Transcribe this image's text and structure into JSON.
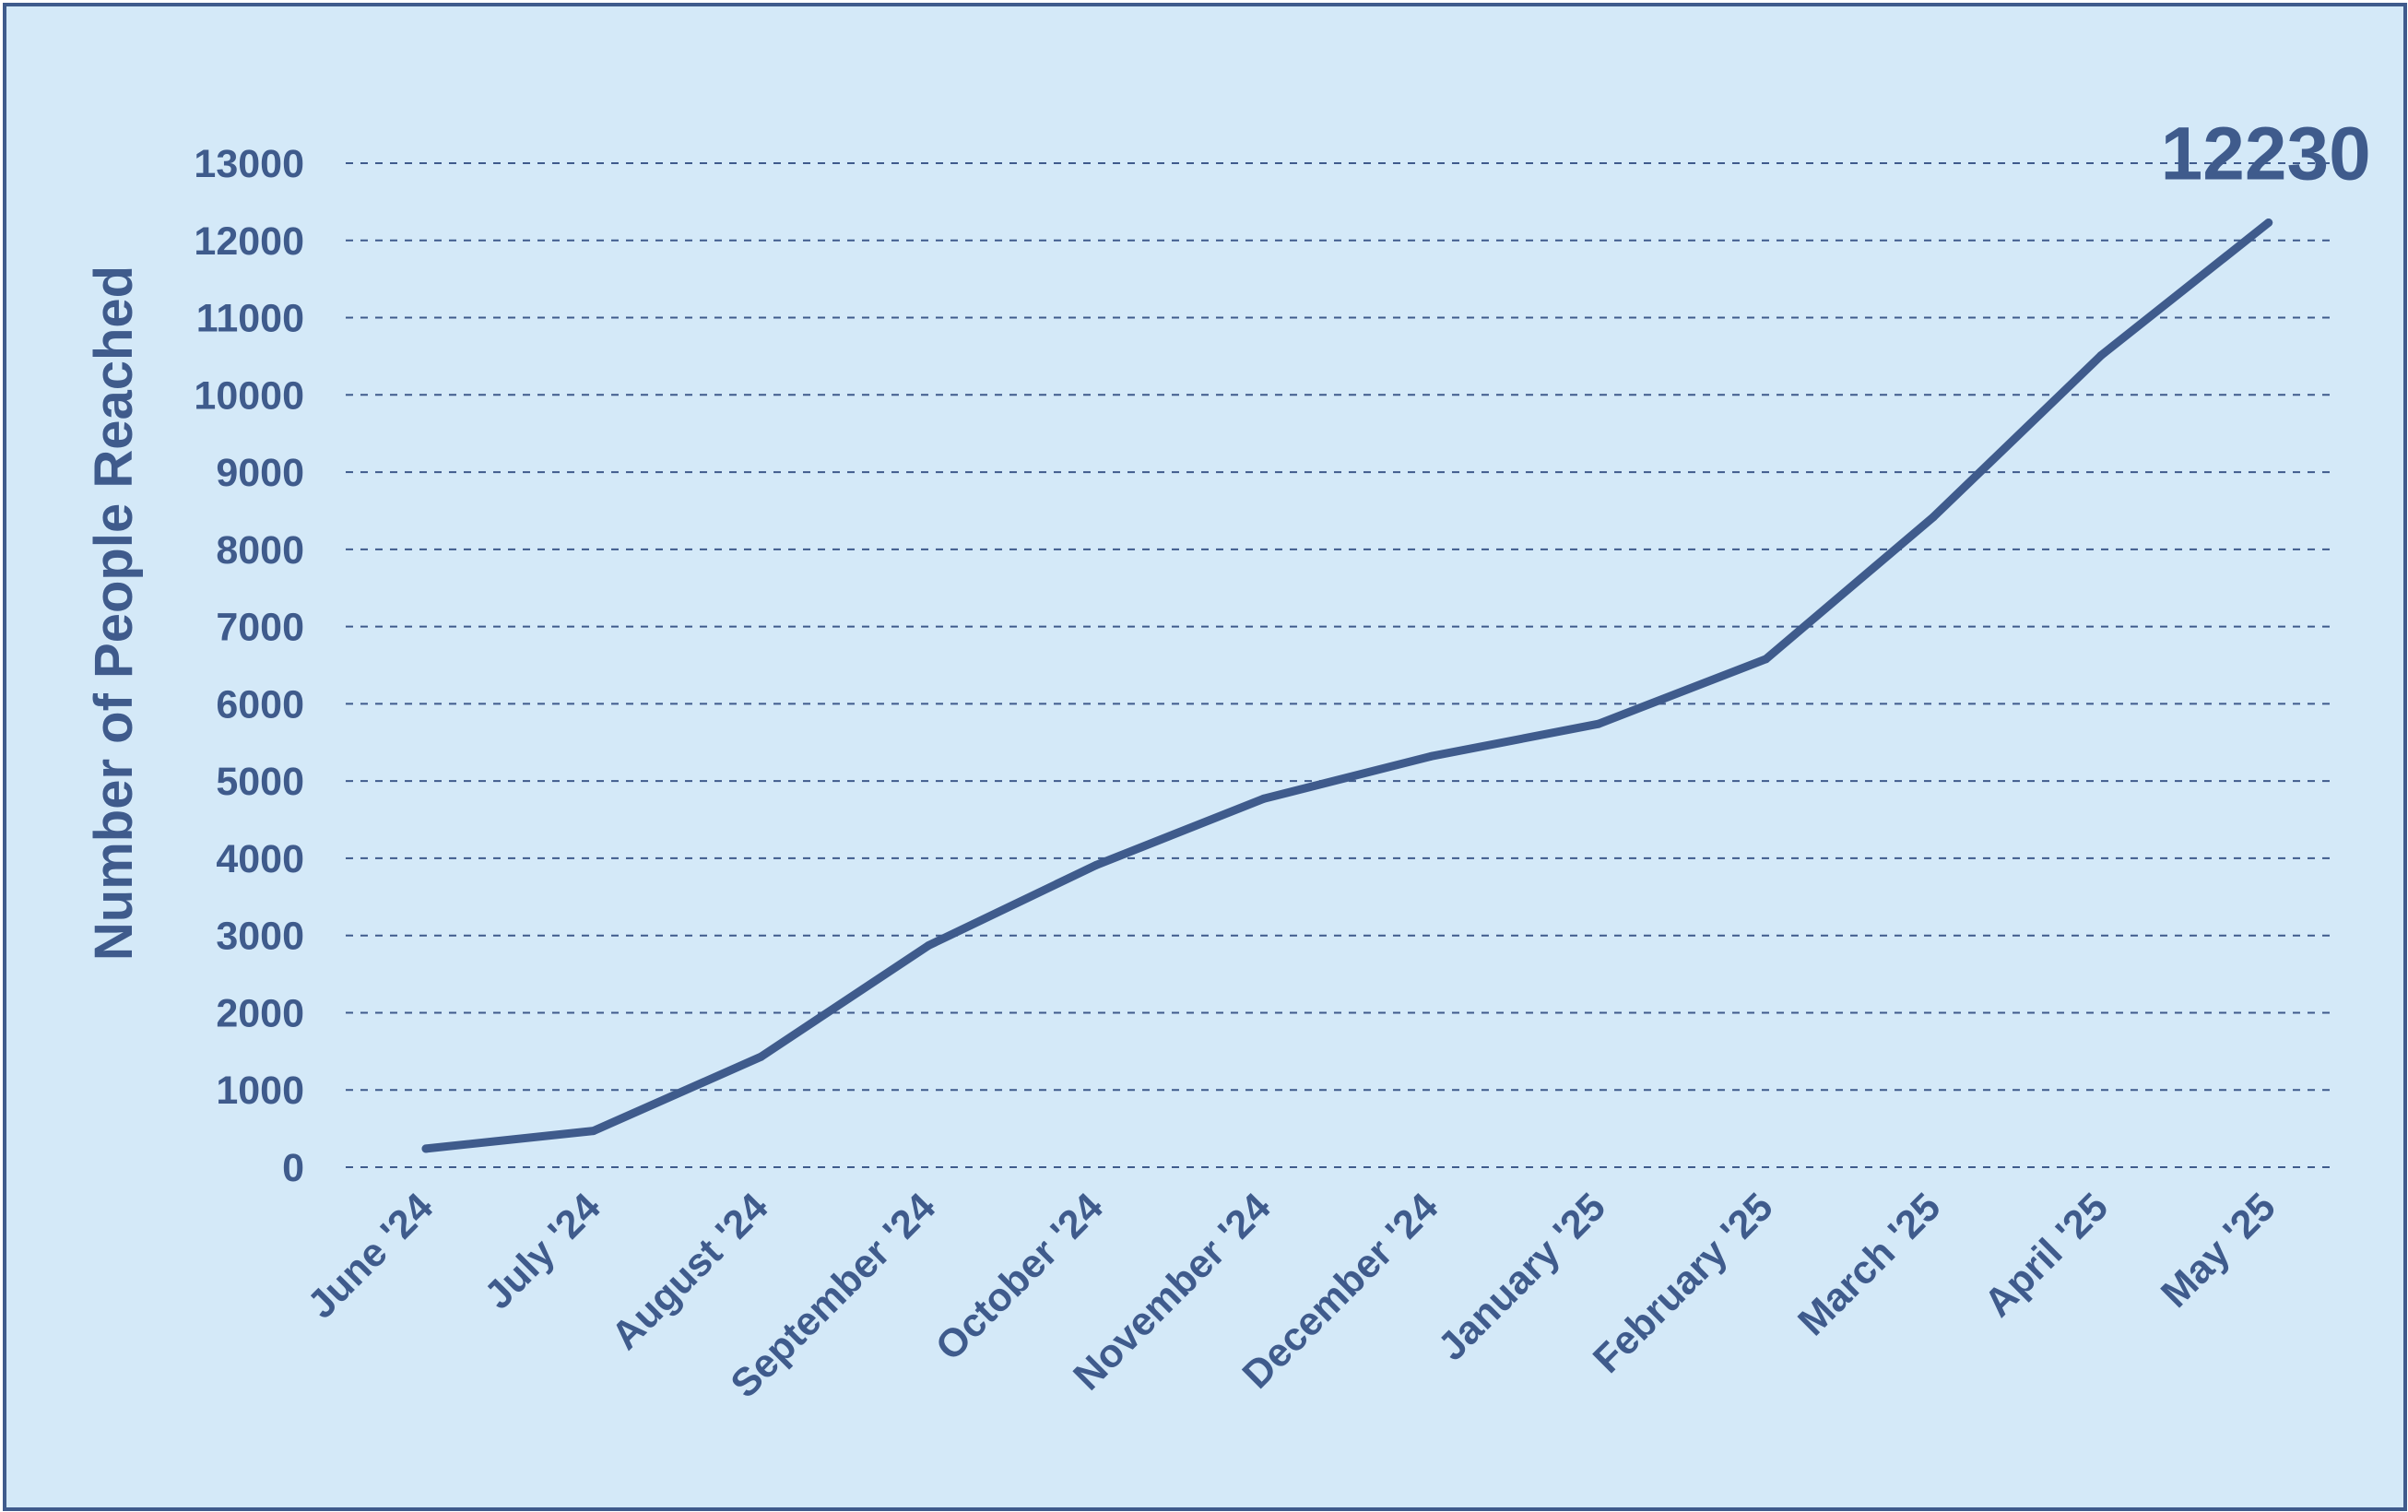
{
  "colors": {
    "background": "#d4e9f8",
    "accent": "#3f5b8c"
  },
  "chart_data": {
    "type": "line",
    "title": "",
    "xlabel": "",
    "ylabel": "Number of People Reached",
    "ylim": [
      0,
      13000
    ],
    "y_ticks": [
      0,
      1000,
      2000,
      3000,
      4000,
      5000,
      6000,
      7000,
      8000,
      9000,
      10000,
      11000,
      12000,
      13000
    ],
    "grid": true,
    "legend": "none",
    "categories": [
      "June '24",
      "July '24",
      "August '24",
      "September '24",
      "October '24",
      "November '24",
      "December '24",
      "January '25",
      "February '25",
      "March '25",
      "April '25",
      "May '25"
    ],
    "series": [
      {
        "values": [
          240,
          470,
          1430,
          2870,
          3910,
          4770,
          5320,
          5740,
          6580,
          8420,
          10510,
          12230
        ]
      }
    ],
    "annotations": [
      {
        "text": "12230",
        "category": "May '25",
        "value": 12230
      }
    ]
  }
}
